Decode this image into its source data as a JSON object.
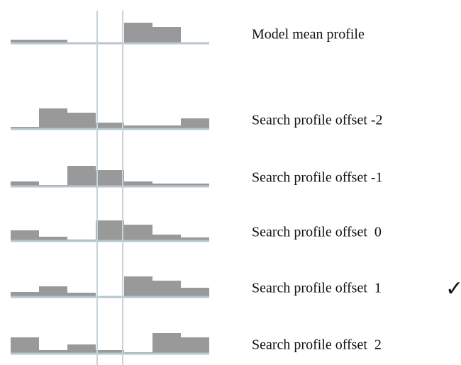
{
  "rows": [
    {
      "label": "Model mean profile",
      "values": [
        4,
        4,
        0,
        0,
        28,
        22,
        0
      ]
    },
    {
      "label": "Search profile offset -2",
      "values": [
        2,
        28,
        22,
        8,
        4,
        4,
        14
      ]
    },
    {
      "label": "Search profile offset -1",
      "values": [
        6,
        1,
        28,
        22,
        6,
        3,
        3
      ]
    },
    {
      "label": "Search profile offset  0",
      "values": [
        14,
        5,
        1,
        28,
        22,
        8,
        4
      ]
    },
    {
      "label": "Search profile offset  1",
      "values": [
        6,
        14,
        5,
        0,
        28,
        22,
        12
      ]
    },
    {
      "label": "Search profile offset  2",
      "values": [
        22,
        4,
        12,
        4,
        1,
        28,
        22
      ]
    }
  ],
  "check": "✓"
}
